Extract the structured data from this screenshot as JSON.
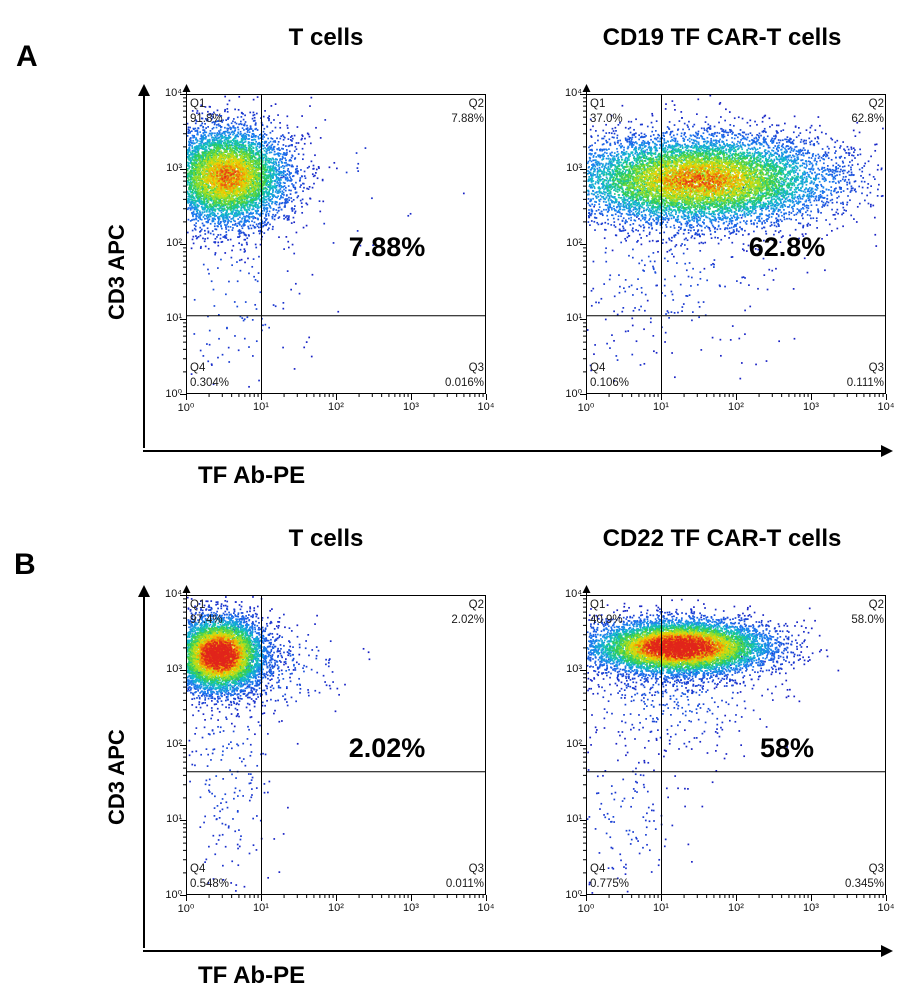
{
  "figure": {
    "background": "#ffffff",
    "panels": [
      {
        "label": "A",
        "x_axis_label": "TF Ab-PE",
        "y_axis_label": "CD3 APC"
      },
      {
        "label": "B",
        "x_axis_label": "TF Ab-PE",
        "y_axis_label": "CD3 APC"
      }
    ],
    "colormap_stops": [
      {
        "t": 0.0,
        "c": "#1818c0"
      },
      {
        "t": 0.25,
        "c": "#1b7cf2"
      },
      {
        "t": 0.42,
        "c": "#12c2c6"
      },
      {
        "t": 0.55,
        "c": "#2ecc52"
      },
      {
        "t": 0.7,
        "c": "#a8e022"
      },
      {
        "t": 0.82,
        "c": "#f2d202"
      },
      {
        "t": 0.9,
        "c": "#f28c06"
      },
      {
        "t": 1.0,
        "c": "#e1251b"
      }
    ]
  },
  "chart_data": [
    {
      "id": "panel-a-t-cells",
      "panel": "A",
      "type": "scatter",
      "subtype": "flow-cytometry-density",
      "title": "T cells",
      "xlabel": "TF Ab-PE",
      "ylabel": "CD3 APC",
      "axis_scale": "log10",
      "xlim_log10": [
        0,
        4
      ],
      "ylim_log10": [
        0,
        4
      ],
      "x_tick_labels": [
        "10⁰",
        "10¹",
        "10²",
        "10³",
        "10⁴"
      ],
      "y_tick_labels": [
        "10⁰",
        "10¹",
        "10²",
        "10³",
        "10⁴"
      ],
      "gate_x_log10": 1.0,
      "gate_y_log10": 1.05,
      "quadrants": [
        {
          "name": "Q1",
          "value": "91.8%"
        },
        {
          "name": "Q2",
          "value": "7.88%"
        },
        {
          "name": "Q3",
          "value": "0.016%"
        },
        {
          "name": "Q4",
          "value": "0.304%"
        }
      ],
      "big_label": "7.88%",
      "clusters": [
        {
          "cx": 0.55,
          "cy": 2.9,
          "sx": 0.42,
          "sy": 0.33,
          "count": 6500,
          "peak": 0.8
        },
        {
          "cx": 0.6,
          "cy": 1.4,
          "sx": 0.5,
          "sy": 0.8,
          "count": 140,
          "peak": 0.12
        },
        {
          "cx": 2.0,
          "cy": 2.8,
          "sx": 0.8,
          "sy": 0.6,
          "count": 30,
          "peak": 0.08
        }
      ]
    },
    {
      "id": "panel-a-cd19-car-t",
      "panel": "A",
      "type": "scatter",
      "subtype": "flow-cytometry-density",
      "title": "CD19 TF CAR-T cells",
      "xlabel": "TF Ab-PE",
      "ylabel": "CD3 APC",
      "axis_scale": "log10",
      "xlim_log10": [
        0,
        4
      ],
      "ylim_log10": [
        0,
        4
      ],
      "x_tick_labels": [
        "10⁰",
        "10¹",
        "10²",
        "10³",
        "10⁴"
      ],
      "y_tick_labels": [
        "10⁰",
        "10¹",
        "10²",
        "10³",
        "10⁴"
      ],
      "gate_x_log10": 1.0,
      "gate_y_log10": 1.05,
      "quadrants": [
        {
          "name": "Q1",
          "value": "37.0%"
        },
        {
          "name": "Q2",
          "value": "62.8%"
        },
        {
          "name": "Q3",
          "value": "0.111%"
        },
        {
          "name": "Q4",
          "value": "0.106%"
        }
      ],
      "big_label": "62.8%",
      "clusters": [
        {
          "cx": 1.5,
          "cy": 2.85,
          "sx": 0.9,
          "sy": 0.3,
          "count": 9500,
          "peak": 0.8
        },
        {
          "cx": 1.1,
          "cy": 1.7,
          "sx": 0.8,
          "sy": 0.6,
          "count": 280,
          "peak": 0.12
        },
        {
          "cx": 0.35,
          "cy": 0.5,
          "sx": 0.3,
          "sy": 0.35,
          "count": 30,
          "peak": 0.08
        }
      ]
    },
    {
      "id": "panel-b-t-cells",
      "panel": "B",
      "type": "scatter",
      "subtype": "flow-cytometry-density",
      "title": "T cells",
      "xlabel": "TF Ab-PE",
      "ylabel": "CD3 APC",
      "axis_scale": "log10",
      "xlim_log10": [
        0,
        4
      ],
      "ylim_log10": [
        0,
        4
      ],
      "x_tick_labels": [
        "10⁰",
        "10¹",
        "10²",
        "10³",
        "10⁴"
      ],
      "y_tick_labels": [
        "10⁰",
        "10¹",
        "10²",
        "10³",
        "10⁴"
      ],
      "gate_x_log10": 1.0,
      "gate_y_log10": 1.65,
      "quadrants": [
        {
          "name": "Q1",
          "value": "97.4%"
        },
        {
          "name": "Q2",
          "value": "2.02%"
        },
        {
          "name": "Q3",
          "value": "0.011%"
        },
        {
          "name": "Q4",
          "value": "0.548%"
        }
      ],
      "big_label": "2.02%",
      "clusters": [
        {
          "cx": 0.45,
          "cy": 3.2,
          "sx": 0.3,
          "sy": 0.25,
          "count": 6500,
          "peak": 1.0
        },
        {
          "cx": 1.05,
          "cy": 3.05,
          "sx": 0.5,
          "sy": 0.35,
          "count": 330,
          "peak": 0.18
        },
        {
          "cx": 0.55,
          "cy": 1.7,
          "sx": 0.35,
          "sy": 0.85,
          "count": 230,
          "peak": 0.12
        }
      ]
    },
    {
      "id": "panel-b-cd22-car-t",
      "panel": "B",
      "type": "scatter",
      "subtype": "flow-cytometry-density",
      "title": "CD22 TF CAR-T cells",
      "xlabel": "TF Ab-PE",
      "ylabel": "CD3 APC",
      "axis_scale": "log10",
      "xlim_log10": [
        0,
        4
      ],
      "ylim_log10": [
        0,
        4
      ],
      "x_tick_labels": [
        "10⁰",
        "10¹",
        "10²",
        "10³",
        "10⁴"
      ],
      "y_tick_labels": [
        "10⁰",
        "10¹",
        "10²",
        "10³",
        "10⁴"
      ],
      "gate_x_log10": 1.0,
      "gate_y_log10": 1.65,
      "quadrants": [
        {
          "name": "Q1",
          "value": "40.9%"
        },
        {
          "name": "Q2",
          "value": "58.0%"
        },
        {
          "name": "Q3",
          "value": "0.345%"
        },
        {
          "name": "Q4",
          "value": "0.775%"
        }
      ],
      "big_label": "58%",
      "clusters": [
        {
          "cx": 1.25,
          "cy": 3.3,
          "sx": 0.6,
          "sy": 0.18,
          "count": 8500,
          "peak": 1.0
        },
        {
          "cx": 1.2,
          "cy": 2.7,
          "sx": 0.65,
          "sy": 0.4,
          "count": 420,
          "peak": 0.15
        },
        {
          "cx": 0.5,
          "cy": 1.0,
          "sx": 0.45,
          "sy": 0.55,
          "count": 150,
          "peak": 0.1
        }
      ]
    }
  ]
}
